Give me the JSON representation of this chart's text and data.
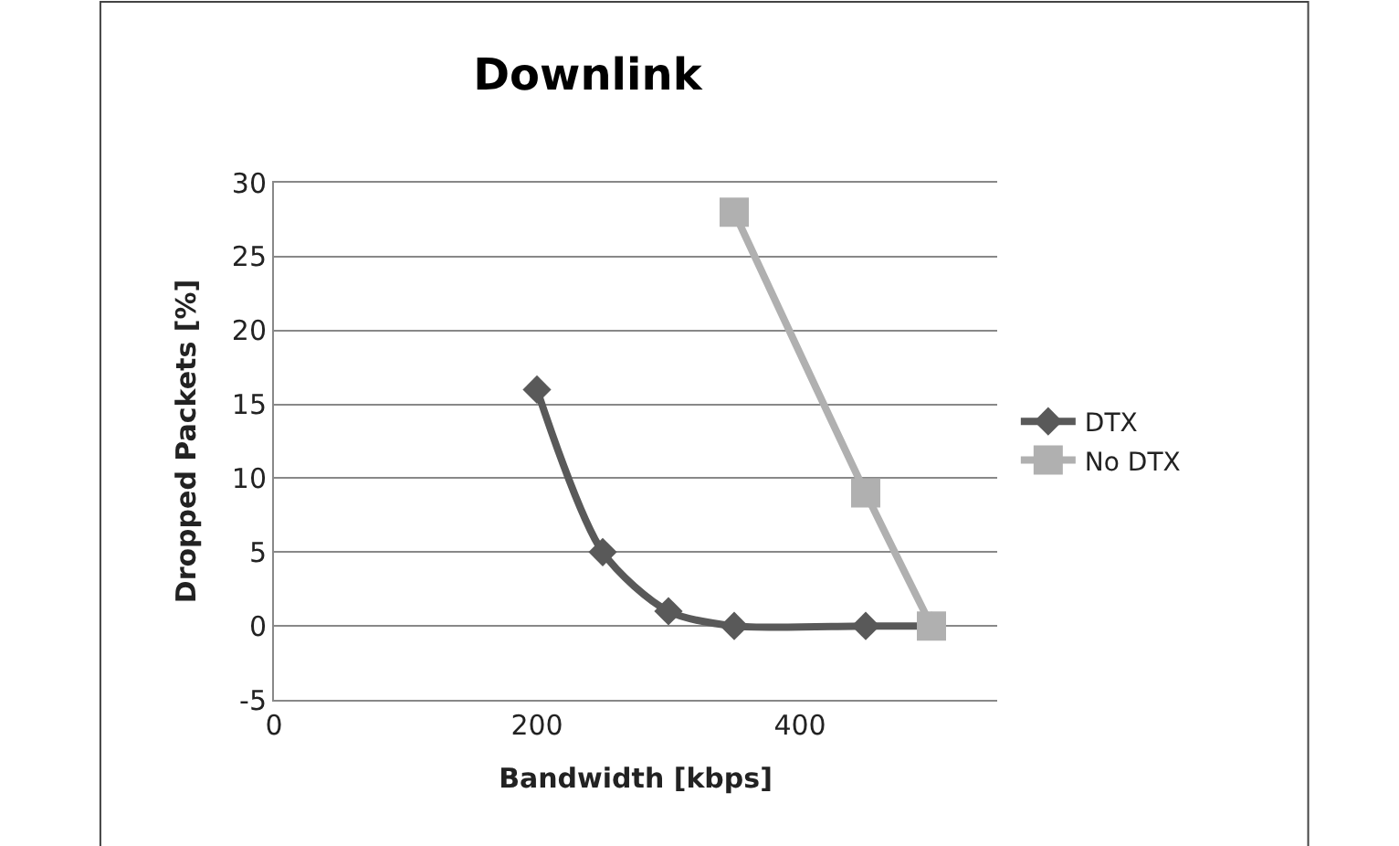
{
  "chart_data": {
    "type": "line",
    "title": "Downlink",
    "xlabel": "Bandwidth [kbps]",
    "ylabel": "Dropped Packets [%]",
    "xlim": [
      0,
      550
    ],
    "xticks": [
      0,
      200,
      400
    ],
    "ylim": [
      -5,
      30
    ],
    "yticks": [
      -5,
      0,
      5,
      10,
      15,
      20,
      25,
      30
    ],
    "grid": "y",
    "legend": "right",
    "series": [
      {
        "name": "DTX",
        "color": "#595959",
        "marker": "diamond",
        "x": [
          200,
          250,
          300,
          350,
          450,
          500
        ],
        "values": [
          16,
          5,
          1,
          0,
          0,
          0
        ]
      },
      {
        "name": "No DTX",
        "color": "#b0b0b0",
        "marker": "square",
        "x": [
          350,
          450,
          500
        ],
        "values": [
          28,
          9,
          0
        ]
      }
    ]
  }
}
